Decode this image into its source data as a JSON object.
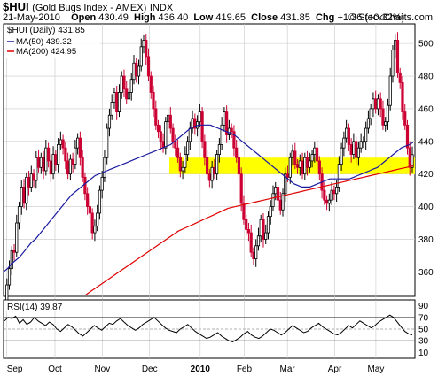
{
  "header": {
    "symbol": "$HUI",
    "name": "(Gold Bugs Index - AMEX)",
    "exchange": "INDX",
    "date": "21-May-2010",
    "open_label": "Open",
    "open": "430.49",
    "high_label": "High",
    "high": "436.40",
    "low_label": "Low",
    "low": "419.65",
    "close_label": "Close",
    "close": "431.85",
    "chg_label": "Chg",
    "chg": "+1.36 (+0.32%)",
    "credit": "© StockCharts.com"
  },
  "legend": {
    "main": "$HUI (Daily) 431.85",
    "ma50": "MA(50) 439.32",
    "ma200": "MA(200) 424.95",
    "rsi": "RSI(14) 39.87"
  },
  "colors": {
    "up": "#000000",
    "down": "#cc0033",
    "ma50": "#1a1aa0",
    "ma200": "#e00000",
    "band": "#ffff00",
    "grid": "#c8c8c8"
  },
  "chart_data": [
    {
      "type": "line",
      "title": "$HUI (Daily) 431.85",
      "x_labels": [
        "Sep",
        "Oct",
        "Nov",
        "Dec",
        "2010",
        "Feb",
        "Mar",
        "Apr",
        "May"
      ],
      "x_label_pos": [
        0.008,
        0.125,
        0.24,
        0.355,
        0.478,
        0.585,
        0.69,
        0.805,
        0.905
      ],
      "ylim": [
        345,
        512
      ],
      "yticks": [
        360,
        380,
        400,
        420,
        440,
        460,
        480,
        500
      ],
      "highlight_band": [
        420,
        430
      ],
      "series": [
        {
          "name": "$HUI",
          "values": [
            340,
            352,
            362,
            373,
            372,
            390,
            400,
            412,
            402,
            418,
            412,
            420,
            416,
            430,
            424,
            430,
            422,
            436,
            428,
            420,
            432,
            426,
            438,
            441,
            436,
            428,
            420,
            429,
            426,
            436,
            442,
            430,
            418,
            408,
            400,
            396,
            384,
            388,
            396,
            410,
            418,
            430,
            448,
            456,
            464,
            470,
            458,
            470,
            480,
            472,
            466,
            470,
            478,
            488,
            480,
            486,
            498,
            502,
            492,
            480,
            470,
            460,
            450,
            446,
            440,
            436,
            452,
            456,
            448,
            440,
            436,
            430,
            422,
            424,
            432,
            440,
            448,
            454,
            448,
            452,
            458,
            440,
            430,
            420,
            416,
            424,
            420,
            432,
            438,
            450,
            458,
            444,
            448,
            446,
            436,
            430,
            420,
            402,
            392,
            386,
            384,
            372,
            368,
            376,
            382,
            392,
            380,
            384,
            394,
            400,
            408,
            412,
            404,
            398,
            408,
            420,
            418,
            430,
            434,
            426,
            424,
            428,
            420,
            430,
            424,
            428,
            432,
            436,
            428,
            420,
            410,
            404,
            402,
            404,
            410,
            408,
            412,
            426,
            436,
            442,
            448,
            438,
            432,
            440,
            430,
            436,
            440,
            440,
            448,
            454,
            460,
            466,
            460,
            466,
            460,
            450,
            452,
            462,
            480,
            496,
            502,
            482,
            476,
            458,
            450,
            436,
            424,
            431.85
          ]
        },
        {
          "name": "MA(50)",
          "values": [
            360,
            362,
            365,
            367,
            369,
            372,
            375,
            378,
            380,
            383,
            386,
            389,
            392,
            395,
            398,
            401,
            404,
            407,
            409,
            411,
            413,
            415,
            417,
            419,
            420,
            421,
            422,
            423,
            424,
            425,
            426,
            427,
            428,
            429,
            430,
            431,
            432,
            433,
            434,
            435,
            436,
            437,
            438,
            440,
            442,
            444,
            446,
            448,
            449,
            450,
            450,
            450,
            450,
            449,
            448,
            447,
            446,
            445,
            444,
            442,
            440,
            438,
            436,
            434,
            432,
            430,
            428,
            426,
            424,
            422,
            420,
            418,
            416,
            414,
            413,
            412,
            412,
            412,
            413,
            414,
            415,
            416,
            417,
            417,
            417,
            417,
            417,
            417,
            418,
            419,
            420,
            421,
            422,
            423,
            424,
            426,
            428,
            430,
            432,
            434,
            436,
            437,
            438,
            439.32
          ]
        },
        {
          "name": "MA(200)",
          "values": [
            346,
            349,
            352,
            355,
            358,
            361,
            364,
            367,
            370,
            373,
            376,
            379,
            382,
            385,
            387,
            389,
            391,
            393,
            395,
            397,
            399,
            400,
            401,
            402,
            403,
            404,
            405,
            406,
            407,
            408,
            409,
            410,
            411,
            412,
            413,
            414,
            415,
            416,
            417,
            418,
            419,
            420,
            421,
            422,
            423,
            424,
            424.95
          ]
        }
      ]
    },
    {
      "type": "line",
      "title": "RSI(14) 39.87",
      "x_labels": [
        "Sep",
        "Oct",
        "Nov",
        "Dec",
        "2010",
        "Feb",
        "Mar",
        "Apr",
        "May"
      ],
      "ylim": [
        0,
        100
      ],
      "yticks": [
        10,
        30,
        50,
        70,
        90
      ],
      "reference_lines": [
        30,
        50,
        70
      ],
      "series": [
        {
          "name": "RSI(14)",
          "values": [
            64,
            70,
            68,
            72,
            60,
            66,
            58,
            62,
            70,
            64,
            60,
            56,
            62,
            58,
            50,
            46,
            52,
            58,
            54,
            48,
            42,
            38,
            44,
            50,
            56,
            52,
            48,
            54,
            60,
            58,
            64,
            68,
            62,
            56,
            52,
            48,
            52,
            58,
            62,
            66,
            70,
            64,
            58,
            52,
            48,
            46,
            44,
            50,
            54,
            58,
            52,
            46,
            42,
            38,
            34,
            36,
            40,
            44,
            38,
            34,
            30,
            28,
            32,
            36,
            42,
            46,
            40,
            36,
            34,
            38,
            44,
            50,
            48,
            44,
            40,
            44,
            50,
            56,
            52,
            48,
            44,
            46,
            52,
            56,
            60,
            54,
            50,
            46,
            42,
            40,
            44,
            50,
            56,
            52,
            58,
            64,
            60,
            56,
            52,
            56,
            62,
            66,
            70,
            74,
            70,
            62,
            54,
            46,
            42,
            39.87
          ]
        }
      ]
    }
  ]
}
